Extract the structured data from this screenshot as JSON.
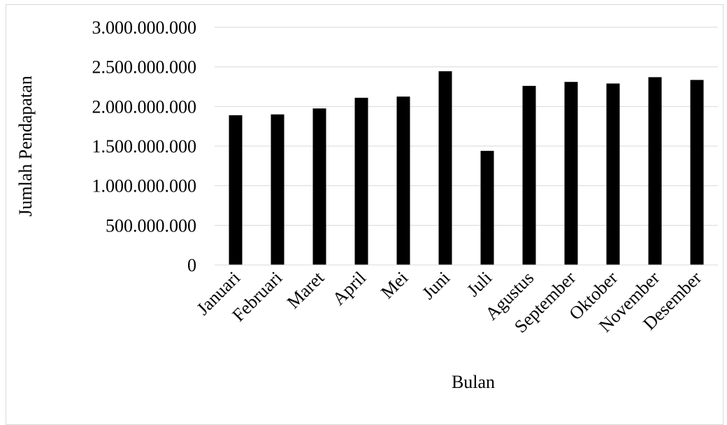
{
  "chart_data": {
    "type": "bar",
    "title": "",
    "xlabel": "Bulan",
    "ylabel": "Jumlah Pendapatan",
    "categories": [
      "Januari",
      "Februari",
      "Maret",
      "April",
      "Mei",
      "Juni",
      "Juli",
      "Agustus",
      "September",
      "Oktober",
      "November",
      "Desember"
    ],
    "values": [
      1890000000,
      1900000000,
      1975000000,
      2110000000,
      2125000000,
      2445000000,
      1440000000,
      2260000000,
      2310000000,
      2290000000,
      2370000000,
      2335000000
    ],
    "ylim": [
      0,
      3000000000
    ],
    "yticks": [
      0,
      500000000,
      1000000000,
      1500000000,
      2000000000,
      2500000000,
      3000000000
    ],
    "ytick_labels": [
      "0",
      "500.000.000",
      "1.000.000.000",
      "1.500.000.000",
      "2.000.000.000",
      "2.500.000.000",
      "3.000.000.000"
    ],
    "grid": true,
    "legend": "none",
    "bar_color": "#000000",
    "grid_color": "#d9d9d9"
  }
}
